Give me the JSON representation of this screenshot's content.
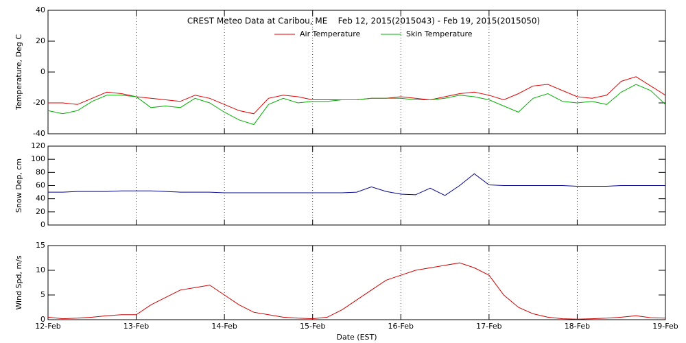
{
  "chart_data": [
    {
      "type": "line",
      "title": "CREST Meteo Data at Caribou, ME    Feb 12, 2015(2015043) - Feb 19, 2015(2015050)",
      "ylabel": "Temperature, Deg C",
      "x": [
        0,
        4,
        8,
        12,
        16,
        20,
        24,
        28,
        32,
        36,
        40,
        44,
        48,
        52,
        56,
        60,
        64,
        68,
        72,
        76,
        80,
        84,
        88,
        92,
        96,
        100,
        104,
        108,
        112,
        116,
        120,
        124,
        128,
        132,
        136,
        140,
        144,
        148,
        152,
        156,
        160,
        164,
        168
      ],
      "series": [
        {
          "name": "Air Temperature",
          "color": "#e00000",
          "values": [
            -20,
            -20,
            -21,
            -17,
            -13,
            -14,
            -16,
            -17,
            -18,
            -19,
            -15,
            -17,
            -21,
            -25,
            -27,
            -17,
            -15,
            -16,
            -18,
            -18,
            -18,
            -18,
            -17,
            -17,
            -16,
            -17,
            -18,
            -16,
            -14,
            -13,
            -15,
            -18,
            -14,
            -9,
            -8,
            -12,
            -16,
            -17,
            -15,
            -6,
            -3,
            -9,
            -15
          ]
        },
        {
          "name": "Skin Temperature",
          "color": "#00b000",
          "values": [
            -25,
            -27,
            -25,
            -19,
            -15,
            -15,
            -16,
            -23,
            -22,
            -23,
            -17,
            -20,
            -26,
            -31,
            -34,
            -21,
            -17,
            -20,
            -19,
            -19,
            -18,
            -18,
            -17,
            -17,
            -17,
            -18,
            -18,
            -17,
            -15,
            -16,
            -18,
            -22,
            -26,
            -17,
            -14,
            -19,
            -20,
            -19,
            -21,
            -13,
            -8,
            -12,
            -21
          ]
        }
      ],
      "xlim": [
        0,
        168
      ],
      "xticks": [
        0,
        24,
        48,
        72,
        96,
        120,
        144,
        168
      ],
      "ylim": [
        -40,
        40
      ],
      "yticks": [
        -40,
        -20,
        0,
        20,
        40
      ],
      "grid": true,
      "legend": "top"
    },
    {
      "type": "line",
      "ylabel": "Snow Dep, cm",
      "x": [
        0,
        4,
        8,
        12,
        16,
        20,
        24,
        28,
        32,
        36,
        40,
        44,
        48,
        52,
        56,
        60,
        64,
        68,
        72,
        76,
        80,
        84,
        88,
        92,
        96,
        100,
        104,
        108,
        112,
        116,
        120,
        124,
        128,
        132,
        136,
        140,
        144,
        148,
        152,
        156,
        160,
        164,
        168
      ],
      "series": [
        {
          "color": "#000090",
          "values": [
            50,
            50,
            51,
            51,
            51,
            52,
            52,
            52,
            51,
            50,
            50,
            50,
            49,
            49,
            49,
            49,
            49,
            49,
            49,
            49,
            49,
            50,
            58,
            51,
            47,
            46,
            56,
            45,
            60,
            78,
            61,
            60,
            60,
            60,
            60,
            60,
            59,
            59,
            59,
            60,
            60,
            60,
            60
          ]
        }
      ],
      "xlim": [
        0,
        168
      ],
      "xticks": [
        0,
        24,
        48,
        72,
        96,
        120,
        144,
        168
      ],
      "ylim": [
        0,
        120
      ],
      "yticks": [
        0,
        20,
        40,
        60,
        80,
        100,
        120
      ],
      "grid": true
    },
    {
      "type": "line",
      "ylabel": "Wind Spd, m/s",
      "xlabel": "Date (EST)",
      "x": [
        0,
        4,
        8,
        12,
        16,
        20,
        24,
        28,
        32,
        36,
        40,
        44,
        48,
        52,
        56,
        60,
        64,
        68,
        72,
        76,
        80,
        84,
        88,
        92,
        96,
        100,
        104,
        108,
        112,
        116,
        120,
        124,
        128,
        132,
        136,
        140,
        144,
        148,
        152,
        156,
        160,
        164,
        168
      ],
      "series": [
        {
          "color": "#d00000",
          "values": [
            0.5,
            0.2,
            0.3,
            0.5,
            0.8,
            1,
            1,
            3,
            4.5,
            6,
            6.5,
            7,
            5,
            3,
            1.5,
            1,
            0.5,
            0.3,
            0.2,
            0.5,
            2,
            4,
            6,
            8,
            9,
            10,
            10.5,
            11,
            11.5,
            10.5,
            9,
            5,
            2.5,
            1.2,
            0.5,
            0.2,
            0.1,
            0.2,
            0.3,
            0.5,
            0.8,
            0.4,
            0.3
          ]
        }
      ],
      "xlim": [
        0,
        168
      ],
      "xticks": [
        {
          "value": 0,
          "label": "12-Feb"
        },
        {
          "value": 24,
          "label": "13-Feb"
        },
        {
          "value": 48,
          "label": "14-Feb"
        },
        {
          "value": 72,
          "label": "15-Feb"
        },
        {
          "value": 96,
          "label": "16-Feb"
        },
        {
          "value": 120,
          "label": "17-Feb"
        },
        {
          "value": 144,
          "label": "18-Feb"
        },
        {
          "value": 168,
          "label": "19-Feb"
        }
      ],
      "ylim": [
        0,
        15
      ],
      "yticks": [
        0,
        5,
        10,
        15
      ],
      "grid": true
    }
  ]
}
